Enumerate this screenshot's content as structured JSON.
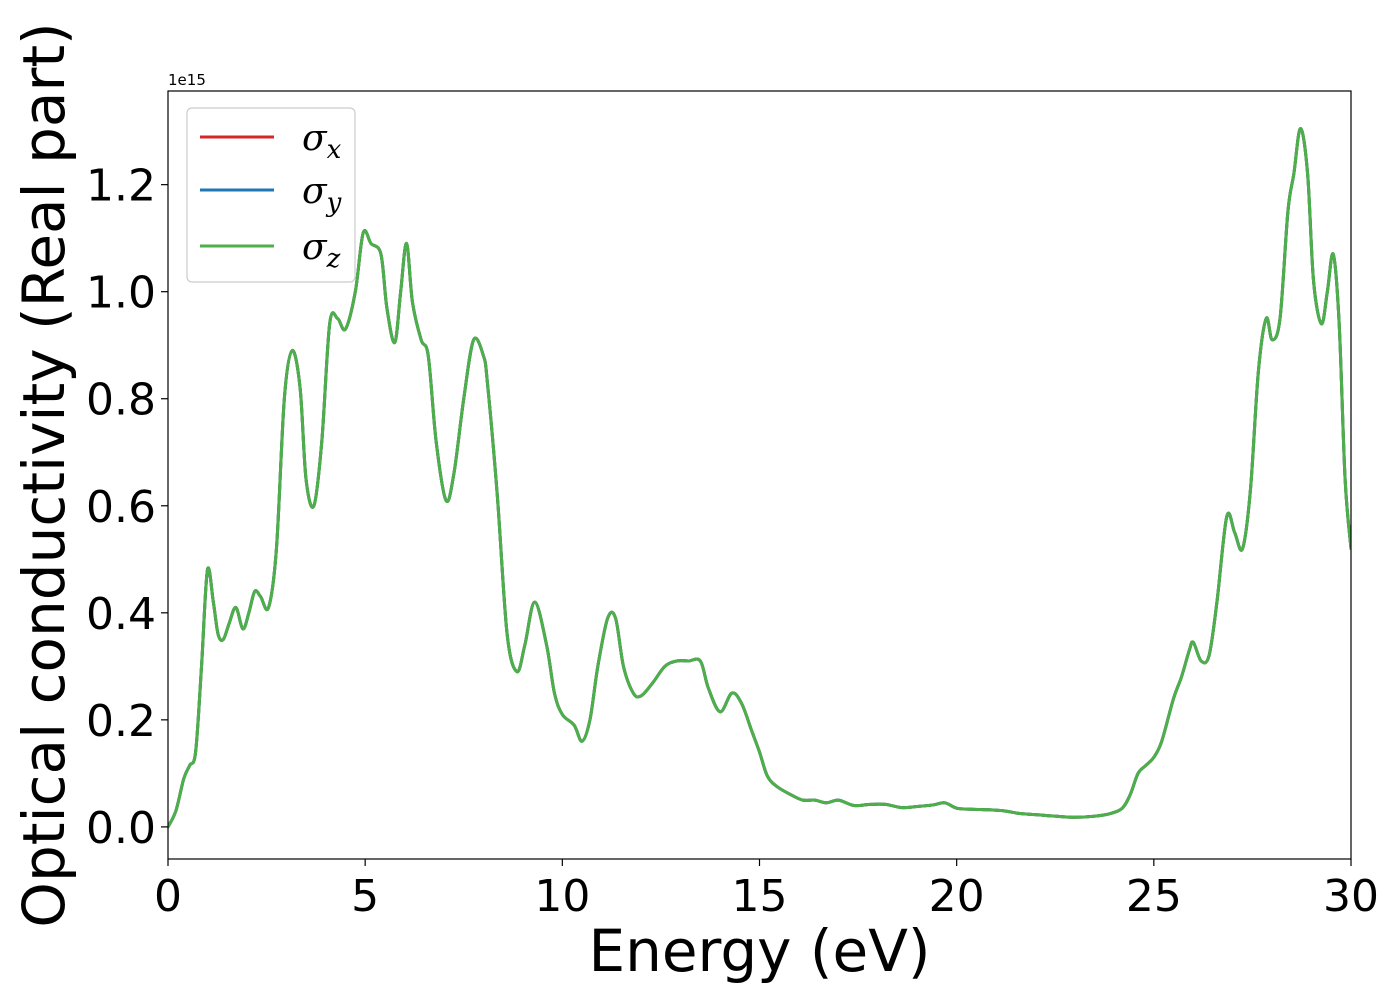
{
  "chart_data": {
    "type": "line",
    "xlabel": "Energy (eV)",
    "ylabel": "Optical conductivity (Real part)",
    "y_offset_label": "1e15",
    "xlim": [
      0,
      30
    ],
    "ylim": [
      -0.06,
      1.375
    ],
    "x_ticks": [
      0,
      5,
      10,
      15,
      20,
      25,
      30
    ],
    "x_tick_labels": [
      "0",
      "5",
      "10",
      "15",
      "20",
      "25",
      "30"
    ],
    "y_ticks": [
      0.0,
      0.2,
      0.4,
      0.6,
      0.8,
      1.0,
      1.2
    ],
    "y_tick_labels": [
      "0.0",
      "0.2",
      "0.4",
      "0.6",
      "0.8",
      "1.0",
      "1.2"
    ],
    "grid": false,
    "legend_placement": "top-left",
    "x": [
      0,
      0.2,
      0.4,
      0.55,
      0.7,
      0.85,
      1.0,
      1.15,
      1.27,
      1.4,
      1.55,
      1.72,
      1.9,
      2.05,
      2.2,
      2.35,
      2.55,
      2.75,
      2.95,
      3.15,
      3.35,
      3.5,
      3.7,
      3.9,
      4.1,
      4.3,
      4.5,
      4.75,
      4.95,
      5.15,
      5.4,
      5.55,
      5.75,
      5.9,
      6.05,
      6.2,
      6.42,
      6.6,
      6.8,
      7.05,
      7.25,
      7.5,
      7.75,
      8.0,
      8.1,
      8.35,
      8.6,
      8.85,
      9.05,
      9.3,
      9.6,
      9.8,
      10.0,
      10.3,
      10.5,
      10.7,
      10.9,
      11.15,
      11.35,
      11.55,
      11.8,
      12.0,
      12.3,
      12.6,
      12.9,
      13.2,
      13.5,
      13.7,
      14.0,
      14.3,
      14.55,
      14.8,
      15.0,
      15.2,
      15.45,
      15.8,
      16.1,
      16.4,
      16.7,
      17.0,
      17.4,
      17.8,
      18.2,
      18.6,
      19.0,
      19.4,
      19.7,
      20.0,
      20.4,
      20.8,
      21.2,
      21.6,
      22.0,
      22.5,
      23.0,
      23.5,
      23.9,
      24.2,
      24.4,
      24.6,
      24.8,
      25.0,
      25.2,
      25.5,
      25.7,
      25.9,
      26.0,
      26.2,
      26.4,
      26.6,
      26.85,
      27.05,
      27.25,
      27.45,
      27.65,
      27.85,
      28.0,
      28.2,
      28.4,
      28.55,
      28.72,
      28.9,
      29.05,
      29.25,
      29.4,
      29.55,
      29.7,
      29.85,
      30.0
    ],
    "series": [
      {
        "name": "σx",
        "color": "#d62728",
        "values": [
          0.0,
          0.03,
          0.09,
          0.115,
          0.14,
          0.3,
          0.48,
          0.42,
          0.36,
          0.35,
          0.38,
          0.41,
          0.37,
          0.4,
          0.44,
          0.43,
          0.41,
          0.52,
          0.8,
          0.89,
          0.82,
          0.65,
          0.6,
          0.72,
          0.94,
          0.95,
          0.93,
          1.0,
          1.11,
          1.09,
          1.07,
          0.97,
          0.905,
          1.0,
          1.09,
          0.98,
          0.91,
          0.88,
          0.72,
          0.61,
          0.66,
          0.8,
          0.91,
          0.88,
          0.83,
          0.62,
          0.36,
          0.29,
          0.34,
          0.42,
          0.34,
          0.25,
          0.21,
          0.19,
          0.16,
          0.2,
          0.3,
          0.39,
          0.39,
          0.3,
          0.25,
          0.245,
          0.27,
          0.3,
          0.31,
          0.31,
          0.31,
          0.26,
          0.215,
          0.25,
          0.23,
          0.18,
          0.14,
          0.095,
          0.075,
          0.06,
          0.05,
          0.05,
          0.045,
          0.05,
          0.04,
          0.042,
          0.042,
          0.036,
          0.038,
          0.041,
          0.045,
          0.035,
          0.033,
          0.032,
          0.03,
          0.025,
          0.023,
          0.02,
          0.018,
          0.02,
          0.025,
          0.035,
          0.06,
          0.1,
          0.115,
          0.13,
          0.16,
          0.24,
          0.28,
          0.33,
          0.345,
          0.31,
          0.32,
          0.42,
          0.58,
          0.55,
          0.52,
          0.63,
          0.85,
          0.95,
          0.91,
          0.95,
          1.15,
          1.22,
          1.305,
          1.22,
          1.02,
          0.94,
          1.0,
          1.07,
          0.94,
          0.65,
          0.52
        ]
      },
      {
        "name": "σy",
        "color": "#1f77b4",
        "values": [
          0.0,
          0.03,
          0.09,
          0.115,
          0.14,
          0.3,
          0.48,
          0.42,
          0.36,
          0.35,
          0.38,
          0.41,
          0.37,
          0.4,
          0.44,
          0.43,
          0.41,
          0.52,
          0.8,
          0.89,
          0.82,
          0.65,
          0.6,
          0.72,
          0.94,
          0.95,
          0.93,
          1.0,
          1.11,
          1.09,
          1.07,
          0.97,
          0.905,
          1.0,
          1.09,
          0.98,
          0.91,
          0.88,
          0.72,
          0.61,
          0.66,
          0.8,
          0.91,
          0.88,
          0.83,
          0.62,
          0.36,
          0.29,
          0.34,
          0.42,
          0.34,
          0.25,
          0.21,
          0.19,
          0.16,
          0.2,
          0.3,
          0.39,
          0.39,
          0.3,
          0.25,
          0.245,
          0.27,
          0.3,
          0.31,
          0.31,
          0.31,
          0.26,
          0.215,
          0.25,
          0.23,
          0.18,
          0.14,
          0.095,
          0.075,
          0.06,
          0.05,
          0.05,
          0.045,
          0.05,
          0.04,
          0.042,
          0.042,
          0.036,
          0.038,
          0.041,
          0.045,
          0.035,
          0.033,
          0.032,
          0.03,
          0.025,
          0.023,
          0.02,
          0.018,
          0.02,
          0.025,
          0.035,
          0.06,
          0.1,
          0.115,
          0.13,
          0.16,
          0.24,
          0.28,
          0.33,
          0.345,
          0.31,
          0.32,
          0.42,
          0.58,
          0.55,
          0.52,
          0.63,
          0.85,
          0.95,
          0.91,
          0.95,
          1.15,
          1.22,
          1.305,
          1.22,
          1.02,
          0.94,
          1.0,
          1.07,
          0.94,
          0.65,
          0.52
        ]
      },
      {
        "name": "σz",
        "color": "#4daf4a",
        "values": [
          0.0,
          0.03,
          0.09,
          0.115,
          0.14,
          0.3,
          0.48,
          0.42,
          0.36,
          0.35,
          0.38,
          0.41,
          0.37,
          0.4,
          0.44,
          0.43,
          0.41,
          0.52,
          0.8,
          0.89,
          0.82,
          0.65,
          0.6,
          0.72,
          0.94,
          0.95,
          0.93,
          1.0,
          1.11,
          1.09,
          1.07,
          0.97,
          0.905,
          1.0,
          1.09,
          0.98,
          0.91,
          0.88,
          0.72,
          0.61,
          0.66,
          0.8,
          0.91,
          0.88,
          0.83,
          0.62,
          0.36,
          0.29,
          0.34,
          0.42,
          0.34,
          0.25,
          0.21,
          0.19,
          0.16,
          0.2,
          0.3,
          0.39,
          0.39,
          0.3,
          0.25,
          0.245,
          0.27,
          0.3,
          0.31,
          0.31,
          0.31,
          0.26,
          0.215,
          0.25,
          0.23,
          0.18,
          0.14,
          0.095,
          0.075,
          0.06,
          0.05,
          0.05,
          0.045,
          0.05,
          0.04,
          0.042,
          0.042,
          0.036,
          0.038,
          0.041,
          0.045,
          0.035,
          0.033,
          0.032,
          0.03,
          0.025,
          0.023,
          0.02,
          0.018,
          0.02,
          0.025,
          0.035,
          0.06,
          0.1,
          0.115,
          0.13,
          0.16,
          0.24,
          0.28,
          0.33,
          0.345,
          0.31,
          0.32,
          0.42,
          0.58,
          0.55,
          0.52,
          0.63,
          0.85,
          0.95,
          0.91,
          0.95,
          1.15,
          1.22,
          1.305,
          1.22,
          1.02,
          0.94,
          1.0,
          1.07,
          0.94,
          0.65,
          0.52
        ]
      }
    ],
    "legend": [
      {
        "symbol": "σ",
        "sub": "x",
        "color": "#d62728"
      },
      {
        "symbol": "σ",
        "sub": "y",
        "color": "#1f77b4"
      },
      {
        "symbol": "σ",
        "sub": "z",
        "color": "#4daf4a"
      }
    ]
  }
}
